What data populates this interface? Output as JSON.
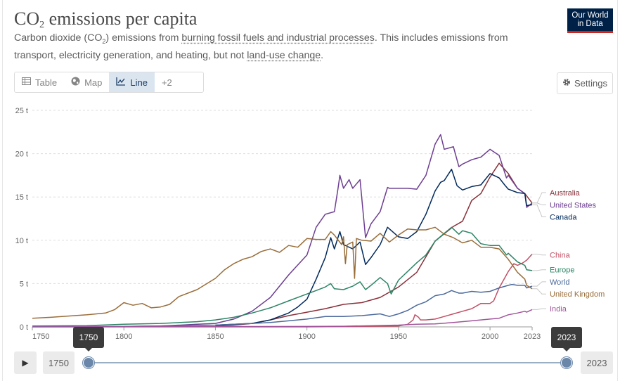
{
  "header": {
    "title_main": "CO",
    "title_sub": "2",
    "title_rest": " emissions per capita",
    "subtitle_a": "Carbon dioxide (CO",
    "subtitle_sub": "2",
    "subtitle_b": ") emissions from ",
    "subtitle_link1": "burning fossil fuels and industrial processes",
    "subtitle_c": ". This includes emissions from transport, electricity generation, and heating, but not ",
    "subtitle_link2": "land-use change",
    "subtitle_d": ".",
    "logo_line1": "Our World",
    "logo_line2": "in Data"
  },
  "tabs": [
    {
      "label": "Table",
      "icon": "table-icon"
    },
    {
      "label": "Map",
      "icon": "globe-icon"
    },
    {
      "label": "Line",
      "icon": "line-chart-icon",
      "active": true
    },
    {
      "label": "+2",
      "icon": ""
    }
  ],
  "settings": {
    "label": "Settings",
    "icon": "gear-icon"
  },
  "timeline": {
    "start_year": "1750",
    "end_year": "2023",
    "start_tip": "1750",
    "end_tip": "2023"
  },
  "chart_data": {
    "type": "line",
    "xlim": [
      1750,
      2023
    ],
    "ylim": [
      0,
      25
    ],
    "x_ticks": [
      1750,
      1800,
      1850,
      1900,
      1950,
      2000,
      2023
    ],
    "y_ticks": [
      {
        "v": 0,
        "label": "0 t"
      },
      {
        "v": 5,
        "label": "5 t"
      },
      {
        "v": 10,
        "label": "10 t"
      },
      {
        "v": 15,
        "label": "15 t"
      },
      {
        "v": 20,
        "label": "20 t"
      },
      {
        "v": 25,
        "label": "25 t"
      }
    ],
    "grid": true,
    "series": [
      {
        "name": "Australia",
        "color": "#883039",
        "label_y": 15.5,
        "points": [
          [
            1850,
            0.1
          ],
          [
            1860,
            0.2
          ],
          [
            1870,
            0.4
          ],
          [
            1880,
            0.8
          ],
          [
            1890,
            1.3
          ],
          [
            1900,
            1.7
          ],
          [
            1910,
            2.1
          ],
          [
            1920,
            2.6
          ],
          [
            1930,
            2.8
          ],
          [
            1940,
            3.4
          ],
          [
            1950,
            4.6
          ],
          [
            1960,
            6.3
          ],
          [
            1970,
            9.9
          ],
          [
            1980,
            11.6
          ],
          [
            1985,
            12.2
          ],
          [
            1990,
            14.6
          ],
          [
            1995,
            15.4
          ],
          [
            2000,
            17.3
          ],
          [
            2005,
            18.9
          ],
          [
            2010,
            17.7
          ],
          [
            2015,
            16.0
          ],
          [
            2019,
            15.4
          ],
          [
            2023,
            14.3
          ]
        ]
      },
      {
        "name": "United States",
        "color": "#6d3e91",
        "label_y": 14.1,
        "points": [
          [
            1800,
            0.05
          ],
          [
            1820,
            0.1
          ],
          [
            1840,
            0.3
          ],
          [
            1850,
            0.4
          ],
          [
            1860,
            0.9
          ],
          [
            1870,
            1.8
          ],
          [
            1880,
            3.4
          ],
          [
            1890,
            6.0
          ],
          [
            1900,
            8.3
          ],
          [
            1905,
            11.5
          ],
          [
            1910,
            13.0
          ],
          [
            1915,
            13.3
          ],
          [
            1917,
            16.0
          ],
          [
            1918,
            17.5
          ],
          [
            1920,
            16.0
          ],
          [
            1923,
            17.0
          ],
          [
            1925,
            16.0
          ],
          [
            1929,
            17.0
          ],
          [
            1931,
            12.5
          ],
          [
            1932,
            10.3
          ],
          [
            1935,
            11.9
          ],
          [
            1940,
            13.3
          ],
          [
            1944,
            16.1
          ],
          [
            1945,
            16.0
          ],
          [
            1950,
            16.0
          ],
          [
            1955,
            16.0
          ],
          [
            1960,
            15.9
          ],
          [
            1965,
            17.5
          ],
          [
            1970,
            21.1
          ],
          [
            1973,
            22.2
          ],
          [
            1975,
            20.5
          ],
          [
            1980,
            20.8
          ],
          [
            1983,
            18.5
          ],
          [
            1985,
            18.8
          ],
          [
            1990,
            19.3
          ],
          [
            1995,
            19.6
          ],
          [
            2000,
            20.5
          ],
          [
            2005,
            19.8
          ],
          [
            2009,
            17.2
          ],
          [
            2010,
            17.5
          ],
          [
            2015,
            16.0
          ],
          [
            2019,
            15.4
          ],
          [
            2020,
            13.8
          ],
          [
            2023,
            14.3
          ]
        ]
      },
      {
        "name": "Canada",
        "color": "#00295b",
        "label_y": 12.7,
        "points": [
          [
            1850,
            0.2
          ],
          [
            1870,
            0.4
          ],
          [
            1880,
            0.8
          ],
          [
            1890,
            1.6
          ],
          [
            1895,
            2.3
          ],
          [
            1900,
            3.2
          ],
          [
            1905,
            5.5
          ],
          [
            1910,
            8.0
          ],
          [
            1913,
            10.3
          ],
          [
            1915,
            9.0
          ],
          [
            1918,
            11.0
          ],
          [
            1920,
            9.5
          ],
          [
            1925,
            9.0
          ],
          [
            1929,
            9.8
          ],
          [
            1932,
            7.2
          ],
          [
            1935,
            8.0
          ],
          [
            1940,
            9.5
          ],
          [
            1944,
            11.5
          ],
          [
            1950,
            10.4
          ],
          [
            1955,
            10.2
          ],
          [
            1960,
            11.0
          ],
          [
            1965,
            13.0
          ],
          [
            1970,
            15.7
          ],
          [
            1973,
            16.7
          ],
          [
            1975,
            16.9
          ],
          [
            1979,
            18.2
          ],
          [
            1982,
            16.3
          ],
          [
            1985,
            15.8
          ],
          [
            1990,
            16.2
          ],
          [
            1995,
            16.4
          ],
          [
            2000,
            17.7
          ],
          [
            2005,
            17.2
          ],
          [
            2008,
            16.4
          ],
          [
            2010,
            15.9
          ],
          [
            2015,
            15.5
          ],
          [
            2019,
            15.4
          ],
          [
            2020,
            14.0
          ],
          [
            2023,
            14.1
          ]
        ]
      },
      {
        "name": "China",
        "color": "#c15065",
        "label_y": 8.3,
        "points": [
          [
            1750,
            0.0
          ],
          [
            1900,
            0.0
          ],
          [
            1950,
            0.1
          ],
          [
            1955,
            0.3
          ],
          [
            1958,
            0.8
          ],
          [
            1959,
            1.4
          ],
          [
            1961,
            1.1
          ],
          [
            1962,
            0.8
          ],
          [
            1965,
            0.8
          ],
          [
            1970,
            0.9
          ],
          [
            1975,
            1.2
          ],
          [
            1980,
            1.5
          ],
          [
            1985,
            1.8
          ],
          [
            1990,
            2.1
          ],
          [
            1995,
            2.7
          ],
          [
            2000,
            2.7
          ],
          [
            2002,
            3.0
          ],
          [
            2005,
            4.5
          ],
          [
            2010,
            6.4
          ],
          [
            2013,
            7.3
          ],
          [
            2015,
            7.1
          ],
          [
            2018,
            7.4
          ],
          [
            2020,
            7.7
          ],
          [
            2023,
            8.4
          ]
        ]
      },
      {
        "name": "Europe",
        "color": "#2c8465",
        "label_y": 6.6,
        "points": [
          [
            1750,
            0.1
          ],
          [
            1780,
            0.15
          ],
          [
            1800,
            0.3
          ],
          [
            1820,
            0.4
          ],
          [
            1840,
            0.6
          ],
          [
            1850,
            0.8
          ],
          [
            1860,
            1.1
          ],
          [
            1870,
            1.6
          ],
          [
            1880,
            2.2
          ],
          [
            1890,
            3.0
          ],
          [
            1900,
            3.8
          ],
          [
            1905,
            4.2
          ],
          [
            1910,
            4.6
          ],
          [
            1913,
            5.0
          ],
          [
            1915,
            4.4
          ],
          [
            1920,
            4.3
          ],
          [
            1925,
            4.7
          ],
          [
            1929,
            5.2
          ],
          [
            1932,
            4.3
          ],
          [
            1935,
            4.8
          ],
          [
            1940,
            5.7
          ],
          [
            1944,
            5.0
          ],
          [
            1946,
            3.8
          ],
          [
            1950,
            5.4
          ],
          [
            1955,
            6.4
          ],
          [
            1960,
            7.4
          ],
          [
            1965,
            8.3
          ],
          [
            1970,
            9.9
          ],
          [
            1975,
            10.8
          ],
          [
            1979,
            11.5
          ],
          [
            1983,
            10.7
          ],
          [
            1985,
            11.1
          ],
          [
            1990,
            10.8
          ],
          [
            1995,
            9.6
          ],
          [
            2000,
            9.4
          ],
          [
            2005,
            9.4
          ],
          [
            2009,
            8.3
          ],
          [
            2010,
            8.5
          ],
          [
            2015,
            7.5
          ],
          [
            2019,
            7.1
          ],
          [
            2020,
            6.6
          ],
          [
            2023,
            6.5
          ]
        ]
      },
      {
        "name": "World",
        "color": "#4c6a9c",
        "label_y": 5.2,
        "points": [
          [
            1750,
            0.02
          ],
          [
            1800,
            0.05
          ],
          [
            1850,
            0.2
          ],
          [
            1870,
            0.4
          ],
          [
            1880,
            0.5
          ],
          [
            1890,
            0.7
          ],
          [
            1900,
            0.9
          ],
          [
            1910,
            1.2
          ],
          [
            1920,
            1.2
          ],
          [
            1930,
            1.3
          ],
          [
            1940,
            1.5
          ],
          [
            1945,
            1.2
          ],
          [
            1950,
            1.5
          ],
          [
            1955,
            1.9
          ],
          [
            1960,
            2.5
          ],
          [
            1965,
            2.9
          ],
          [
            1970,
            3.6
          ],
          [
            1975,
            3.8
          ],
          [
            1979,
            4.2
          ],
          [
            1983,
            3.9
          ],
          [
            1985,
            3.9
          ],
          [
            1990,
            4.1
          ],
          [
            1995,
            4.0
          ],
          [
            2000,
            4.1
          ],
          [
            2005,
            4.5
          ],
          [
            2010,
            4.8
          ],
          [
            2012,
            4.9
          ],
          [
            2015,
            4.8
          ],
          [
            2019,
            4.8
          ],
          [
            2020,
            4.5
          ],
          [
            2023,
            4.7
          ]
        ]
      },
      {
        "name": "United Kingdom",
        "color": "#996d39",
        "label_y": 3.8,
        "points": [
          [
            1750,
            1.0
          ],
          [
            1760,
            1.1
          ],
          [
            1780,
            1.4
          ],
          [
            1790,
            1.6
          ],
          [
            1795,
            2.0
          ],
          [
            1800,
            2.8
          ],
          [
            1805,
            2.5
          ],
          [
            1810,
            2.7
          ],
          [
            1815,
            2.2
          ],
          [
            1820,
            2.3
          ],
          [
            1825,
            2.6
          ],
          [
            1830,
            3.5
          ],
          [
            1840,
            4.3
          ],
          [
            1850,
            5.6
          ],
          [
            1855,
            6.6
          ],
          [
            1860,
            7.3
          ],
          [
            1865,
            7.8
          ],
          [
            1870,
            8.1
          ],
          [
            1875,
            8.7
          ],
          [
            1880,
            9.0
          ],
          [
            1885,
            8.6
          ],
          [
            1890,
            9.4
          ],
          [
            1895,
            9.2
          ],
          [
            1900,
            10.2
          ],
          [
            1905,
            10.1
          ],
          [
            1910,
            10.1
          ],
          [
            1913,
            11.0
          ],
          [
            1915,
            10.6
          ],
          [
            1919,
            9.5
          ],
          [
            1920,
            10.4
          ],
          [
            1921,
            7.3
          ],
          [
            1922,
            9.5
          ],
          [
            1925,
            9.8
          ],
          [
            1926,
            5.6
          ],
          [
            1927,
            10.2
          ],
          [
            1930,
            10.0
          ],
          [
            1935,
            9.9
          ],
          [
            1940,
            10.8
          ],
          [
            1945,
            9.8
          ],
          [
            1950,
            10.6
          ],
          [
            1955,
            11.3
          ],
          [
            1960,
            11.2
          ],
          [
            1965,
            11.2
          ],
          [
            1970,
            11.5
          ],
          [
            1975,
            10.7
          ],
          [
            1980,
            10.3
          ],
          [
            1985,
            9.7
          ],
          [
            1990,
            10.0
          ],
          [
            1995,
            9.2
          ],
          [
            2000,
            9.2
          ],
          [
            2005,
            9.0
          ],
          [
            2010,
            7.8
          ],
          [
            2015,
            6.3
          ],
          [
            2019,
            5.5
          ],
          [
            2020,
            4.8
          ],
          [
            2023,
            4.4
          ]
        ]
      },
      {
        "name": "India",
        "color": "#a2559c",
        "label_y": 2.1,
        "points": [
          [
            1750,
            0.0
          ],
          [
            1900,
            0.05
          ],
          [
            1920,
            0.07
          ],
          [
            1950,
            0.2
          ],
          [
            1960,
            0.3
          ],
          [
            1970,
            0.35
          ],
          [
            1980,
            0.5
          ],
          [
            1990,
            0.7
          ],
          [
            2000,
            0.9
          ],
          [
            2005,
            1.0
          ],
          [
            2010,
            1.4
          ],
          [
            2015,
            1.6
          ],
          [
            2019,
            1.8
          ],
          [
            2020,
            1.7
          ],
          [
            2023,
            2.0
          ]
        ]
      }
    ]
  }
}
